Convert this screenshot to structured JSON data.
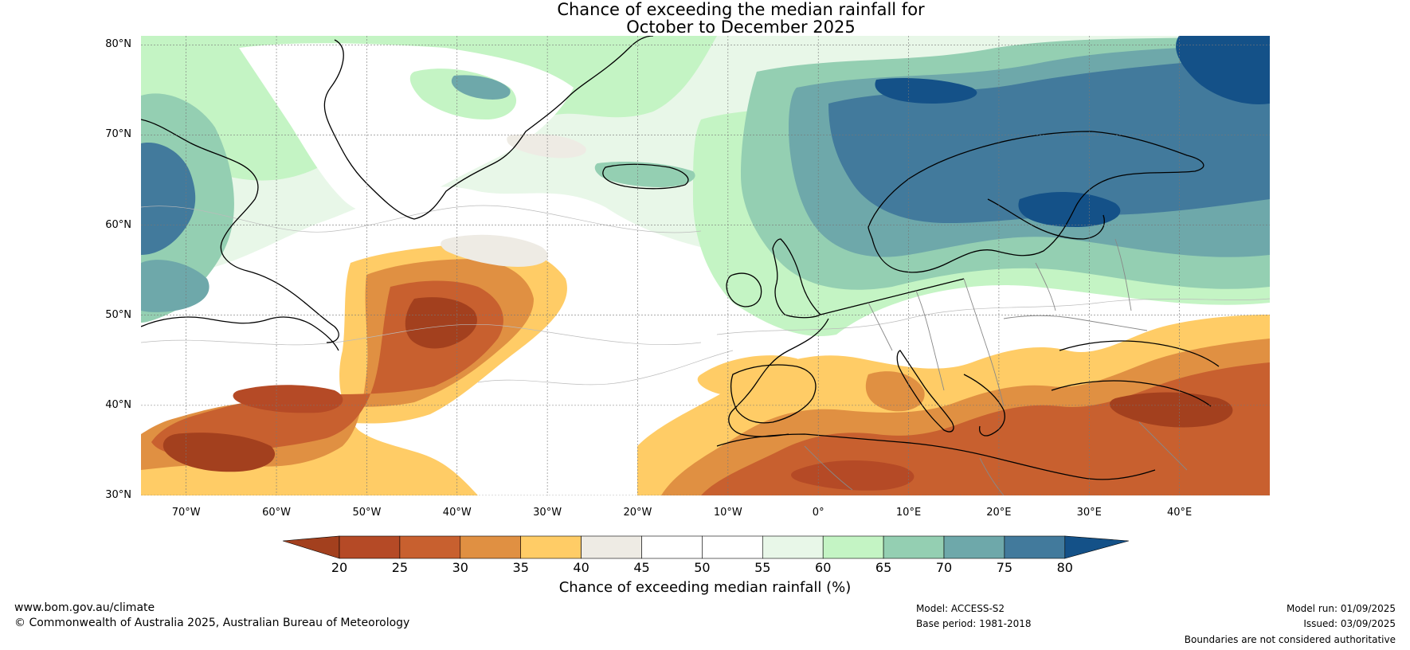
{
  "title": {
    "line1": "Chance of exceeding the median rainfall for",
    "line2": "October to December 2025"
  },
  "map": {
    "lat_labels": [
      "80°N",
      "70°N",
      "60°N",
      "50°N",
      "40°N",
      "30°N"
    ],
    "lon_labels": [
      "70°W",
      "60°W",
      "50°W",
      "40°W",
      "30°W",
      "20°W",
      "10°W",
      "0°",
      "10°E",
      "20°E",
      "30°E",
      "40°E"
    ]
  },
  "colorbar": {
    "title": "Chance of exceeding median rainfall (%)",
    "ticks": [
      "20",
      "25",
      "30",
      "35",
      "40",
      "45",
      "50",
      "55",
      "60",
      "65",
      "70",
      "75",
      "80"
    ],
    "colors": [
      "#a3401e",
      "#b54a26",
      "#c8602f",
      "#e09042",
      "#ffcc66",
      "#eeebe4",
      "#ffffff",
      "#ffffff",
      "#e8f7e8",
      "#c4f4c4",
      "#94cfb2",
      "#6ea8aa",
      "#427a9c",
      "#145188"
    ]
  },
  "footer": {
    "url": "www.bom.gov.au/climate",
    "copyright": "© Commonwealth of Australia 2025, Australian Bureau of Meteorology",
    "model": "Model: ACCESS-S2",
    "base_period": "Base period: 1981-2018",
    "model_run": "Model run: 01/09/2025",
    "issued": "Issued: 03/09/2025",
    "disclaimer": "Boundaries are not considered authoritative"
  }
}
